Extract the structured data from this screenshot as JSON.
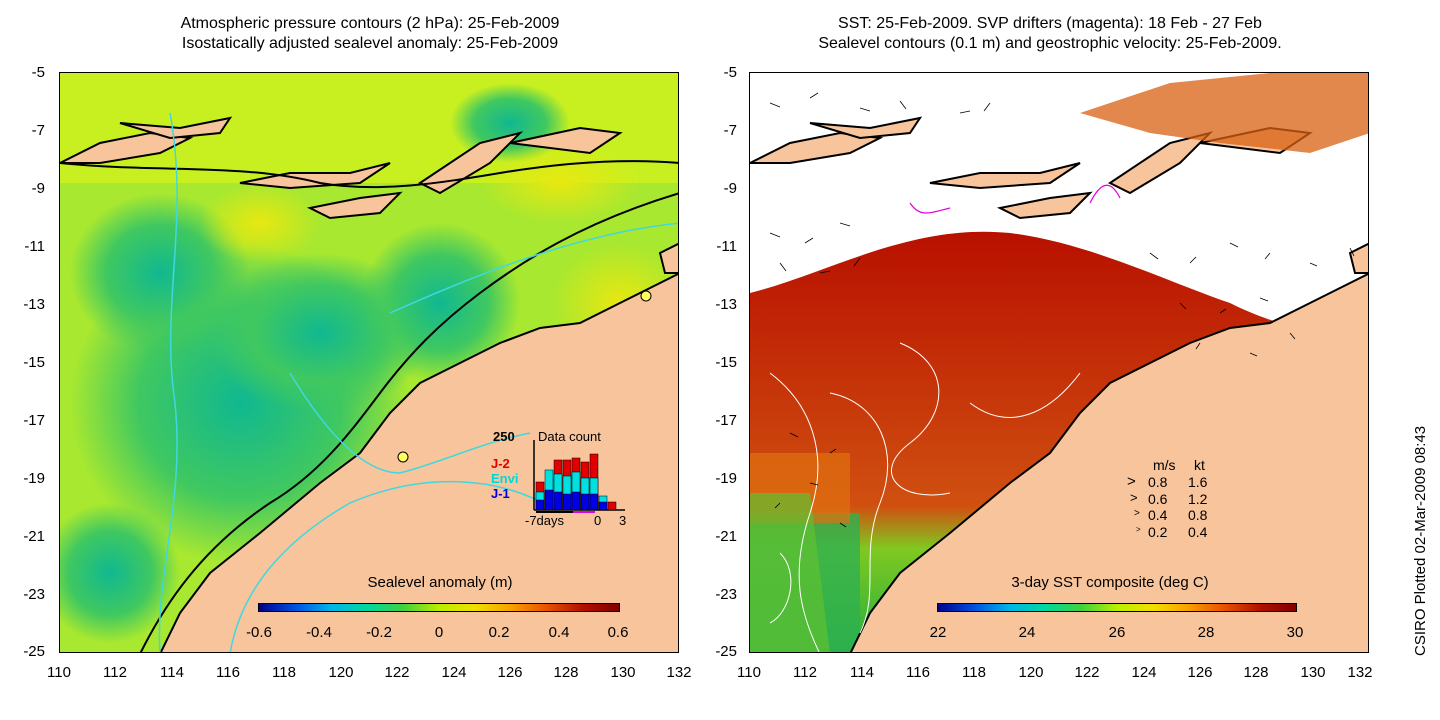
{
  "left_panel": {
    "title_line1": "Atmospheric pressure contours (2 hPa): 25-Feb-2009",
    "title_line2": "Isostatically adjusted sealevel anomaly: 25-Feb-2009",
    "colorbar_label": "Sealevel anomaly (m)",
    "colorbar_ticks": [
      "-0.6",
      "-0.4",
      "-0.2",
      "0",
      "0.2",
      "0.4",
      "0.6"
    ],
    "inset": {
      "max_label": "250",
      "title": "Data count",
      "series": [
        {
          "name": "J-2",
          "color": "#e00000"
        },
        {
          "name": "Envi",
          "color": "#00e0e0"
        },
        {
          "name": "J-1",
          "color": "#0000e0"
        }
      ],
      "x_labels": [
        "-7days",
        "0",
        "3"
      ]
    }
  },
  "right_panel": {
    "title_line1": "SST: 25-Feb-2009. SVP drifters (magenta): 18 Feb - 27 Feb",
    "title_line2": "Sealevel contours (0.1 m) and geostrophic velocity: 25-Feb-2009.",
    "colorbar_label": "3-day SST composite (deg C)",
    "colorbar_ticks": [
      "22",
      "24",
      "26",
      "28",
      "30"
    ],
    "velocity_legend": {
      "header_ms": "m/s",
      "header_kt": "kt",
      "rows": [
        {
          "ms": "0.8",
          "kt": "1.6"
        },
        {
          "ms": "0.6",
          "kt": "1.2"
        },
        {
          "ms": "0.4",
          "kt": "0.8"
        },
        {
          "ms": "0.2",
          "kt": "0.4"
        }
      ]
    }
  },
  "axes": {
    "y_ticks": [
      "-5",
      "-7",
      "-9",
      "-11",
      "-13",
      "-15",
      "-17",
      "-19",
      "-21",
      "-23",
      "-25"
    ],
    "x_ticks": [
      "110",
      "112",
      "114",
      "116",
      "118",
      "120",
      "122",
      "124",
      "126",
      "128",
      "130",
      "132"
    ]
  },
  "credit": "CSIRO Plotted 02-Mar-2009 08:43",
  "colors": {
    "land": "#f8c49c",
    "sla_low": "#00a878",
    "sla_mid": "#b8f000",
    "sst_warm": "#b81000",
    "ocean_white": "#ffffff",
    "contour_cyan": "#40d8e0"
  }
}
